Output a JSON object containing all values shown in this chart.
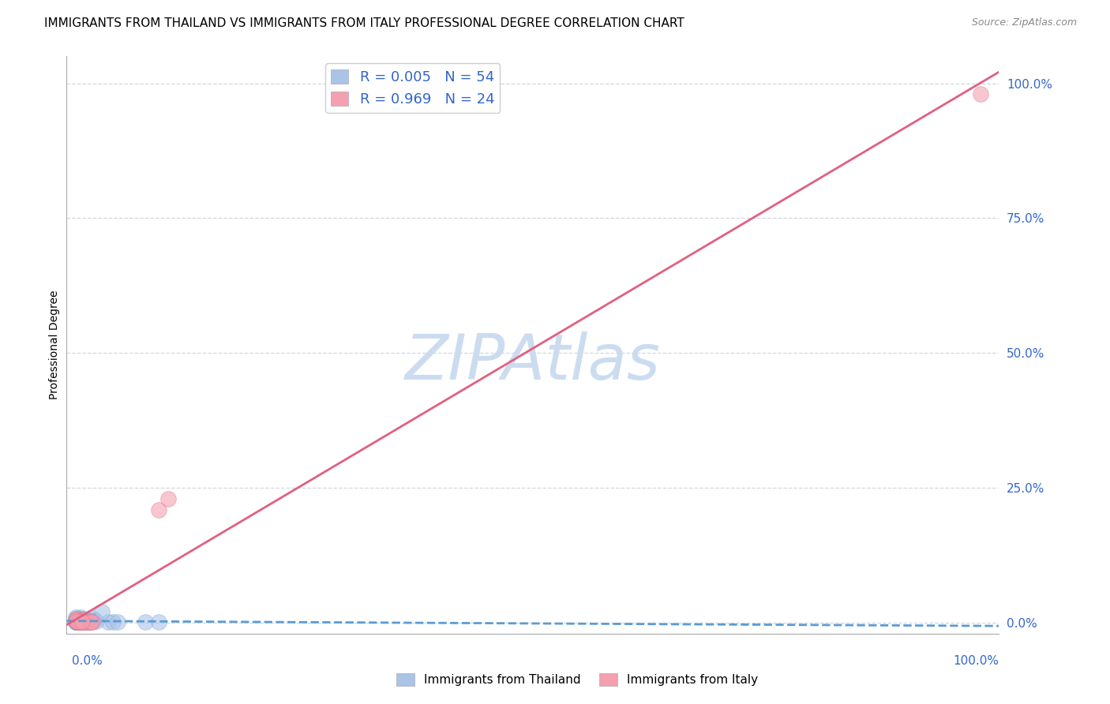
{
  "title": "IMMIGRANTS FROM THAILAND VS IMMIGRANTS FROM ITALY PROFESSIONAL DEGREE CORRELATION CHART",
  "source": "Source: ZipAtlas.com",
  "ylabel": "Professional Degree",
  "xlim": [
    -0.01,
    1.0
  ],
  "ylim": [
    -0.02,
    1.05
  ],
  "xticks": [
    0.0,
    1.0
  ],
  "xticklabels": [
    "0.0%",
    "100.0%"
  ],
  "yticks": [
    0.0,
    0.25,
    0.5,
    0.75,
    1.0
  ],
  "yticklabels": [
    "0.0%",
    "25.0%",
    "50.0%",
    "75.0%",
    "100.0%"
  ],
  "series": [
    {
      "name": "Immigrants from Thailand",
      "color": "#aac4e8",
      "edge_color": "#7aaad4",
      "R": 0.005,
      "N": 54,
      "trend_color": "#5b9bd5",
      "trend_style": "dashed",
      "points_x": [
        0.0,
        0.005,
        0.01,
        0.0,
        0.015,
        0.005,
        0.0,
        0.01,
        0.005,
        0.0,
        0.012,
        0.018,
        0.0,
        0.006,
        0.009,
        0.02,
        0.004,
        0.0,
        0.008,
        0.014,
        0.003,
        0.0,
        0.016,
        0.007,
        0.004,
        0.001,
        0.013,
        0.009,
        0.035,
        0.005,
        0.0,
        0.008,
        0.004,
        0.017,
        0.0,
        0.011,
        0.003,
        0.007,
        0.0,
        0.022,
        0.005,
        0.0,
        0.009,
        0.04,
        0.013,
        0.003,
        0.028,
        0.0,
        0.045,
        0.007,
        0.075,
        0.09,
        0.003,
        0.014
      ],
      "points_y": [
        0.001,
        0.004,
        0.001,
        0.008,
        0.001,
        0.01,
        0.001,
        0.005,
        0.001,
        0.007,
        0.001,
        0.009,
        0.003,
        0.001,
        0.007,
        0.004,
        0.001,
        0.01,
        0.001,
        0.003,
        0.006,
        0.001,
        0.004,
        0.001,
        0.007,
        0.001,
        0.003,
        0.001,
        0.001,
        0.004,
        0.001,
        0.006,
        0.001,
        0.003,
        0.001,
        0.005,
        0.001,
        0.003,
        0.001,
        0.003,
        0.006,
        0.001,
        0.003,
        0.001,
        0.005,
        0.001,
        0.02,
        0.001,
        0.001,
        0.003,
        0.001,
        0.001,
        0.001,
        0.001
      ]
    },
    {
      "name": "Immigrants from Italy",
      "color": "#f4a0b0",
      "edge_color": "#e07090",
      "R": 0.969,
      "N": 24,
      "trend_color": "#e06080",
      "trend_style": "solid",
      "points_x": [
        0.001,
        0.005,
        0.008,
        0.001,
        0.012,
        0.004,
        0.015,
        0.007,
        0.003,
        0.001,
        0.018,
        0.007,
        0.003,
        0.001,
        0.011,
        0.003,
        0.016,
        0.006,
        0.09,
        0.1,
        0.003,
        0.001,
        0.007,
        0.98
      ],
      "points_y": [
        0.001,
        0.003,
        0.001,
        0.007,
        0.001,
        0.004,
        0.001,
        0.006,
        0.001,
        0.003,
        0.001,
        0.003,
        0.001,
        0.006,
        0.001,
        0.003,
        0.001,
        0.003,
        0.21,
        0.23,
        0.001,
        0.003,
        0.001,
        0.98
      ]
    }
  ],
  "legend_color": "#3366cc",
  "watermark_text": "ZIPAtlas",
  "watermark_color": "#ccdcf0",
  "background_color": "#ffffff",
  "grid_color": "#d0d8e0",
  "title_fontsize": 11,
  "source_fontsize": 9
}
